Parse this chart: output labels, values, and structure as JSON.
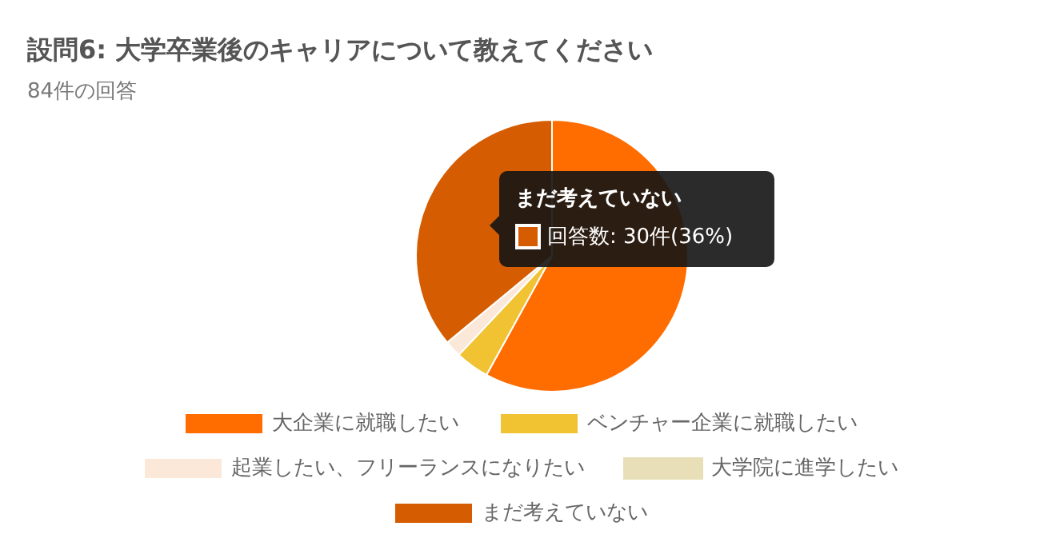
{
  "chart_data": {
    "type": "pie",
    "title": "設問6: 大学卒業後のキャリアについて教えてください",
    "subtitle": "84件の回答",
    "categories": [
      "大企業に就職したい",
      "ベンチャー企業に就職したい",
      "起業したい、フリーランスになりたい",
      "大学院に進学したい",
      "まだ考えていない"
    ],
    "values": [
      58,
      4,
      2,
      0,
      36
    ],
    "colors": [
      "#ff6d01",
      "#f1c232",
      "#fce8d9",
      "#e8dfb8",
      "#d55c00"
    ],
    "legend": "bottom",
    "annotations": [
      "まだ考えていない",
      "回答数: 30件(36%)"
    ]
  }
}
